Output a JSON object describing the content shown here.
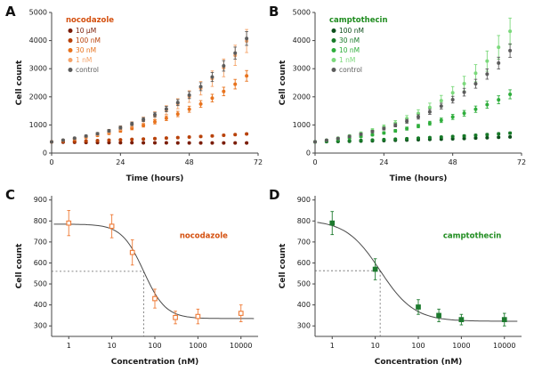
{
  "figure": {
    "background": "#ffffff",
    "panels": [
      {
        "id": "A",
        "letter": "A"
      },
      {
        "id": "B",
        "letter": "B"
      },
      {
        "id": "C",
        "letter": "C"
      },
      {
        "id": "D",
        "letter": "D"
      }
    ]
  },
  "chart_data": [
    {
      "panel": "A",
      "type": "scatter",
      "xscale": "linear",
      "legend": true,
      "marker": "circle",
      "title": "nocodazole",
      "title_color": "#d4500f",
      "xlabel": "Time (hours)",
      "ylabel": "Cell count",
      "xlim": [
        0,
        72
      ],
      "ylim": [
        0,
        5000
      ],
      "xticks": [
        0,
        24,
        48,
        72
      ],
      "yticks": [
        0,
        1000,
        2000,
        3000,
        4000,
        5000
      ],
      "x": [
        0,
        4,
        8,
        12,
        16,
        20,
        24,
        28,
        32,
        36,
        40,
        44,
        48,
        52,
        56,
        60,
        64,
        68
      ],
      "series": [
        {
          "name": "10 µM",
          "color": "#7a1c06",
          "values": [
            395,
            388,
            382,
            377,
            373,
            370,
            368,
            366,
            364,
            363,
            362,
            361,
            360,
            360,
            359,
            359,
            358,
            358
          ],
          "errors": [
            15,
            14,
            13,
            13,
            12,
            12,
            12,
            12,
            12,
            12,
            12,
            12,
            12,
            12,
            12,
            12,
            12,
            12
          ]
        },
        {
          "name": "100 nM",
          "color": "#b8420a",
          "values": [
            400,
            410,
            420,
            432,
            444,
            457,
            470,
            485,
            500,
            516,
            533,
            551,
            570,
            590,
            611,
            633,
            656,
            680
          ],
          "errors": [
            16,
            16,
            17,
            17,
            18,
            18,
            19,
            20,
            20,
            21,
            22,
            23,
            24,
            25,
            26,
            27,
            28,
            30
          ]
        },
        {
          "name": "30 nM",
          "color": "#e8731e",
          "values": [
            400,
            450,
            500,
            560,
            630,
            705,
            790,
            885,
            990,
            1110,
            1240,
            1390,
            1560,
            1745,
            1955,
            2190,
            2450,
            2745
          ],
          "errors": [
            20,
            24,
            28,
            33,
            38,
            44,
            50,
            57,
            65,
            74,
            84,
            95,
            107,
            120,
            135,
            152,
            170,
            190
          ]
        },
        {
          "name": "1 nM",
          "color": "#f5a368",
          "values": [
            400,
            455,
            520,
            590,
            675,
            775,
            885,
            1015,
            1165,
            1335,
            1530,
            1755,
            2010,
            2305,
            2645,
            3030,
            3475,
            3985
          ],
          "errors": [
            25,
            30,
            38,
            47,
            57,
            68,
            81,
            96,
            113,
            132,
            154,
            179,
            207,
            239,
            275,
            315,
            360,
            410
          ]
        },
        {
          "name": "control",
          "color": "#5c5c5c",
          "values": [
            400,
            460,
            530,
            605,
            690,
            790,
            905,
            1040,
            1190,
            1365,
            1565,
            1795,
            2060,
            2360,
            2705,
            3100,
            3555,
            4075
          ],
          "errors": [
            20,
            24,
            28,
            33,
            39,
            45,
            52,
            60,
            70,
            81,
            93,
            107,
            123,
            141,
            162,
            186,
            213,
            245
          ]
        }
      ]
    },
    {
      "panel": "B",
      "type": "scatter",
      "xscale": "linear",
      "legend": true,
      "marker": "circle",
      "title": "camptothecin",
      "title_color": "#1f8c1f",
      "xlabel": "Time (hours)",
      "ylabel": "Cell count",
      "xlim": [
        0,
        72
      ],
      "ylim": [
        0,
        5000
      ],
      "xticks": [
        0,
        24,
        48,
        72
      ],
      "yticks": [
        0,
        1000,
        2000,
        3000,
        4000,
        5000
      ],
      "x": [
        0,
        4,
        8,
        12,
        16,
        20,
        24,
        28,
        32,
        36,
        40,
        44,
        48,
        52,
        56,
        60,
        64,
        68
      ],
      "series": [
        {
          "name": "100 nM",
          "color": "#0d4f1c",
          "values": [
            400,
            406,
            413,
            420,
            428,
            436,
            445,
            454,
            464,
            474,
            485,
            496,
            508,
            520,
            533,
            546,
            560,
            575
          ],
          "errors": [
            16,
            16,
            17,
            17,
            18,
            18,
            19,
            19,
            20,
            20,
            21,
            22,
            22,
            23,
            24,
            25,
            25,
            26
          ]
        },
        {
          "name": "30 nM",
          "color": "#177a28",
          "values": [
            400,
            411,
            423,
            436,
            449,
            463,
            478,
            494,
            511,
            529,
            548,
            568,
            589,
            611,
            634,
            658,
            683,
            710
          ],
          "errors": [
            18,
            18,
            19,
            20,
            21,
            22,
            23,
            24,
            25,
            26,
            27,
            29,
            30,
            32,
            33,
            35,
            37,
            39
          ]
        },
        {
          "name": "10 nM",
          "color": "#2fae3c",
          "values": [
            400,
            440,
            485,
            535,
            590,
            650,
            715,
            790,
            870,
            960,
            1060,
            1165,
            1285,
            1415,
            1560,
            1720,
            1895,
            2090
          ],
          "errors": [
            20,
            23,
            26,
            30,
            34,
            38,
            43,
            49,
            55,
            62,
            70,
            79,
            89,
            100,
            112,
            126,
            142,
            160
          ]
        },
        {
          "name": "1 nM",
          "color": "#7cd97c",
          "values": [
            400,
            460,
            530,
            610,
            700,
            805,
            925,
            1065,
            1225,
            1410,
            1620,
            1865,
            2145,
            2470,
            2840,
            3270,
            3760,
            4330
          ],
          "errors": [
            24,
            29,
            36,
            44,
            53,
            64,
            77,
            92,
            110,
            131,
            156,
            185,
            219,
            259,
            305,
            360,
            420,
            470
          ]
        },
        {
          "name": "control",
          "color": "#5c5c5c",
          "values": [
            400,
            455,
            520,
            590,
            670,
            765,
            870,
            990,
            1130,
            1285,
            1465,
            1670,
            1900,
            2165,
            2465,
            2810,
            3200,
            3645
          ],
          "errors": [
            20,
            23,
            27,
            32,
            37,
            43,
            50,
            58,
            67,
            77,
            89,
            103,
            119,
            137,
            158,
            182,
            209,
            240
          ]
        }
      ]
    },
    {
      "panel": "C",
      "type": "scatter",
      "xscale": "log",
      "legend": false,
      "annotation": true,
      "marker": "square",
      "title": "nocodazole",
      "title_color": "#d4500f",
      "xlabel": "Concentration (nM)",
      "ylabel": "Cell count",
      "xlim": [
        0.4,
        25000
      ],
      "ylim": [
        250,
        920
      ],
      "xticks": [
        1,
        10,
        100,
        1000,
        10000
      ],
      "yticks": [
        300,
        400,
        500,
        600,
        700,
        800,
        900
      ],
      "x": [
        1,
        10,
        30,
        100,
        300,
        1000,
        10000
      ],
      "series": [
        {
          "name": "nocodazole",
          "color": "#ef7b36",
          "fill": "open",
          "values": [
            790,
            775,
            650,
            430,
            340,
            345,
            360
          ],
          "errors": [
            60,
            55,
            60,
            45,
            30,
            35,
            40
          ]
        }
      ],
      "curve": {
        "top": 785,
        "bottom": 335,
        "ic50": 55,
        "hill": 1.7
      },
      "curve_range": [
        0.45,
        20000
      ],
      "ref": {
        "x": 55,
        "y": 560
      }
    },
    {
      "panel": "D",
      "type": "scatter",
      "xscale": "log",
      "legend": false,
      "annotation": true,
      "marker": "square",
      "title": "camptothecin",
      "title_color": "#1f8c1f",
      "xlabel": "Concentration (nM)",
      "ylabel": "Cell count",
      "xlim": [
        0.4,
        25000
      ],
      "ylim": [
        250,
        920
      ],
      "xticks": [
        1,
        10,
        100,
        1000,
        10000
      ],
      "yticks": [
        300,
        400,
        500,
        600,
        700,
        800,
        900
      ],
      "x": [
        1,
        10,
        100,
        300,
        1000,
        10000
      ],
      "series": [
        {
          "name": "camptothecin",
          "color": "#1d7a2e",
          "fill": "solid",
          "values": [
            790,
            570,
            390,
            350,
            330,
            330
          ],
          "errors": [
            55,
            50,
            35,
            30,
            25,
            30
          ]
        }
      ],
      "curve": {
        "top": 805,
        "bottom": 322,
        "ic50": 13,
        "hill": 1.1
      },
      "curve_range": [
        0.45,
        20000
      ],
      "ref": {
        "x": 13,
        "y": 563
      }
    }
  ]
}
